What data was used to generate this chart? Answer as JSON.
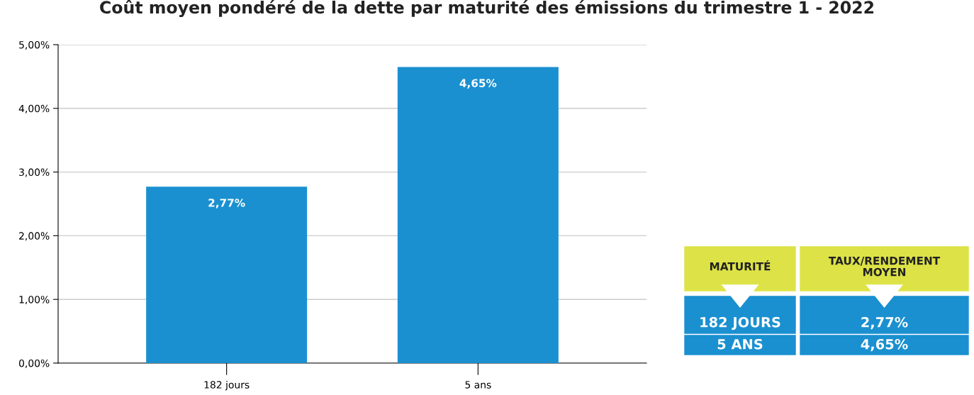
{
  "chart_data": [
    {
      "type": "bar",
      "title": "Coût moyen pondéré de la dette par maturité des émissions du trimestre 1 - 2022",
      "categories": [
        "182 jours",
        "5 ans"
      ],
      "values": [
        2.77,
        4.65
      ],
      "color": "#1a90d0",
      "value_labels": [
        "2,77%",
        "4,65%"
      ],
      "ylim": [
        0,
        5
      ],
      "yticks": [
        {
          "value": 0,
          "label": "0,00%"
        },
        {
          "value": 1,
          "label": "1,00%"
        },
        {
          "value": 2,
          "label": "2,00%"
        },
        {
          "value": 3,
          "label": "3,00%"
        },
        {
          "value": 4,
          "label": "4,00%"
        },
        {
          "value": 5,
          "label": "5,00%"
        }
      ],
      "grid": "y",
      "legend": false
    },
    {
      "type": "other",
      "annotations": [
        "MATURITÉ",
        "TAUX/RENDEMENT\nMOYEN",
        "182 JOURS",
        "2,77%",
        "5 ANS",
        "4,65%"
      ]
    }
  ]
}
